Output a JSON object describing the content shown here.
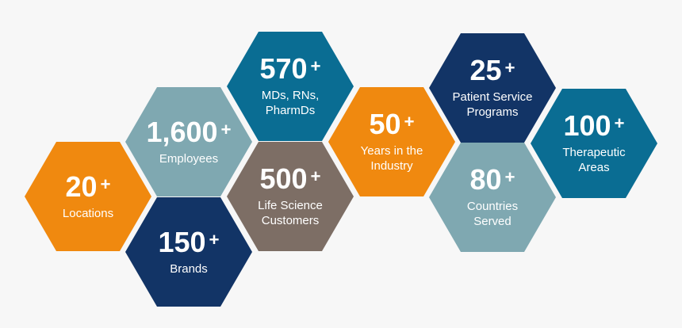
{
  "colors": {
    "background": "#f7f7f7",
    "orange": "#f0890f",
    "light_teal": "#7fa8b1",
    "dark_navy": "#123466",
    "blue_teal": "#0a6d93",
    "taupe": "#7d6e65",
    "text": "#ffffff"
  },
  "tiles": [
    {
      "id": "locations",
      "value": "20",
      "suffix": "+",
      "label": "Locations",
      "color": "orange"
    },
    {
      "id": "employees",
      "value": "1,600",
      "suffix": "+",
      "label": "Employees",
      "color": "light_teal"
    },
    {
      "id": "brands",
      "value": "150",
      "suffix": "+",
      "label": "Brands",
      "color": "dark_navy"
    },
    {
      "id": "mds",
      "value": "570",
      "suffix": "+",
      "label": "MDs, RNs,\nPharmDs",
      "color": "blue_teal"
    },
    {
      "id": "life-science",
      "value": "500",
      "suffix": "+",
      "label": "Life Science\nCustomers",
      "color": "taupe"
    },
    {
      "id": "years",
      "value": "50",
      "suffix": "+",
      "label": "Years in the\nIndustry",
      "color": "orange"
    },
    {
      "id": "patient-service",
      "value": "25",
      "suffix": "+",
      "label": "Patient Service\nPrograms",
      "color": "dark_navy"
    },
    {
      "id": "countries",
      "value": "80",
      "suffix": "+",
      "label": "Countries\nServed",
      "color": "light_teal"
    },
    {
      "id": "therapeutic",
      "value": "100",
      "suffix": "+",
      "label": "Therapeutic\nAreas",
      "color": "blue_teal"
    }
  ]
}
